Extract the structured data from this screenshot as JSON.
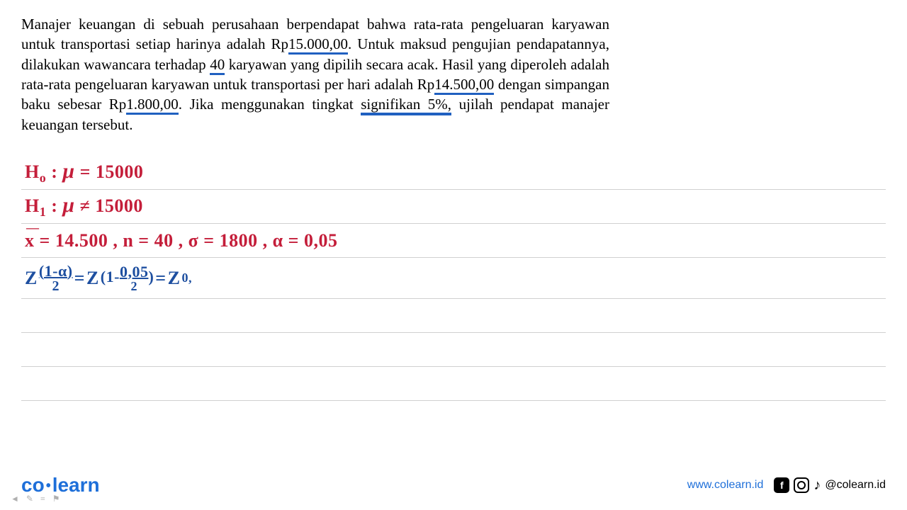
{
  "problem": {
    "line1_pre": "Manajer keuangan di sebuah perusahaan berpendapat bahwa rata-rata pengeluaran karyawan untuk transportasi setiap harinya adalah Rp",
    "val1": "15.000,00",
    "line1_post": ". Untuk maksud pengujian pendapatannya, dilakukan wawancara terhadap ",
    "val2": "40",
    "line2": " karyawan yang dipilih secara acak. Hasil yang diperoleh adalah rata-rata pengeluaran karyawan untuk transportasi per hari adalah Rp",
    "val3": "14.500,00",
    "line3": " dengan simpangan baku sebesar Rp",
    "val4": "1.800,00",
    "line4_pre": ". Jika menggunakan tingkat ",
    "sig": "signifikan 5%,",
    "line4_post": " ujilah pendapat manajer keuangan tersebut."
  },
  "work": {
    "h0_label": "H",
    "h0_sub": "o",
    "h0_colon": " : ",
    "h0_mu": "μ",
    "h0_eq": " = 15000",
    "h1_label": "H",
    "h1_sub": "1",
    "h1_colon": " : ",
    "h1_mu": "μ",
    "h1_neq": " ≠ 15000",
    "xbar_label": "x̄",
    "xbar_val": " = 14.500 ,",
    "n_label": "   n",
    "n_val": " = 40 ,",
    "sigma_label": "     σ",
    "sigma_val": " = 1800   ,",
    "alpha_label": "    α",
    "alpha_val": " = 0,05",
    "z_label": "Z",
    "z_frac_top": "(1-α)",
    "z_frac_bot": "2",
    "z_eq1": " = ",
    "z2_label": "Z",
    "z2_sub_pre": "(1-",
    "z2_frac_top": "0,05",
    "z2_frac_bot": "2",
    "z2_sub_post": ")",
    "z_eq2": " = ",
    "z3_label": "Z",
    "z3_sub": " 0,"
  },
  "footer": {
    "logo_co": "co",
    "logo_learn": "learn",
    "website": "www.colearn.id",
    "handle": "@colearn.id"
  }
}
